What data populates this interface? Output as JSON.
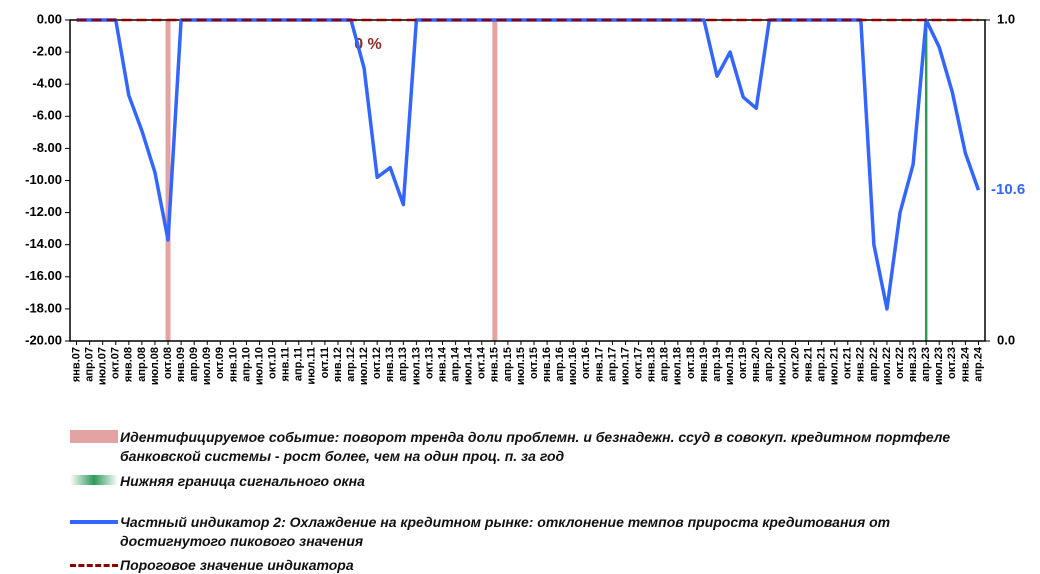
{
  "chart_data": {
    "type": "line",
    "annotation": "0 %",
    "categories": [
      "янв.07",
      "апр.07",
      "июл.07",
      "окт.07",
      "янв.08",
      "апр.08",
      "июл.08",
      "окт.08",
      "янв.09",
      "апр.09",
      "июл.09",
      "окт.09",
      "янв.10",
      "апр.10",
      "июл.10",
      "окт.10",
      "янв.11",
      "апр.11",
      "июл.11",
      "окт.11",
      "янв.12",
      "апр.12",
      "июл.12",
      "окт.12",
      "янв.13",
      "апр.13",
      "июл.13",
      "окт.13",
      "янв.14",
      "апр.14",
      "июл.14",
      "окт.14",
      "янв.15",
      "апр.15",
      "июл.15",
      "окт.15",
      "янв.16",
      "апр.16",
      "июл.16",
      "окт.16",
      "янв.17",
      "апр.17",
      "июл.17",
      "окт.17",
      "янв.18",
      "апр.18",
      "июл.18",
      "окт.18",
      "янв.19",
      "апр.19",
      "июл.19",
      "окт.19",
      "янв.20",
      "апр.20",
      "июл.20",
      "окт.20",
      "янв.21",
      "апр.21",
      "июл.21",
      "окт.21",
      "янв.22",
      "апр.22",
      "июл.22",
      "окт.22",
      "янв.23",
      "апр.23",
      "июл.23",
      "окт.23",
      "янв.24",
      "апр.24"
    ],
    "series": [
      {
        "name": "Идентифицируемое событие: поворот тренда доли проблемн. и безнадежн. ссуд в совокуп. кредитном портфеле банковской системы - рост более, чем на один проц. п. за год",
        "type": "bar",
        "axis": "y2",
        "color": "#e3a3a3",
        "values": [
          null,
          null,
          null,
          null,
          null,
          null,
          null,
          1,
          null,
          null,
          null,
          null,
          null,
          null,
          null,
          null,
          null,
          null,
          null,
          null,
          null,
          null,
          null,
          null,
          null,
          null,
          null,
          null,
          null,
          null,
          null,
          null,
          1,
          null,
          null,
          null,
          null,
          null,
          null,
          null,
          null,
          null,
          null,
          null,
          null,
          null,
          null,
          null,
          null,
          null,
          null,
          null,
          null,
          null,
          null,
          null,
          null,
          null,
          null,
          null,
          null,
          null,
          null,
          null,
          null,
          null,
          null,
          null,
          null,
          null
        ]
      },
      {
        "name": "Нижняя граница сигнального окна",
        "type": "bar",
        "axis": "y2",
        "color": "#2e9a5a",
        "values": [
          null,
          null,
          null,
          null,
          null,
          null,
          null,
          null,
          null,
          null,
          null,
          null,
          null,
          null,
          null,
          null,
          null,
          null,
          null,
          null,
          null,
          null,
          null,
          null,
          null,
          null,
          null,
          null,
          null,
          null,
          null,
          null,
          null,
          null,
          null,
          null,
          null,
          null,
          null,
          null,
          null,
          null,
          null,
          null,
          null,
          null,
          null,
          null,
          null,
          null,
          null,
          null,
          null,
          null,
          null,
          null,
          null,
          null,
          null,
          null,
          null,
          null,
          null,
          null,
          null,
          1,
          null,
          null,
          null,
          null
        ]
      },
      {
        "name": "Частный индикатор 2: Охлаждение на кредитном рынке: отклонение темпов прироста кредитования от достигнутого пикового значения",
        "type": "line",
        "color": "#3366ff",
        "values": [
          0,
          0,
          0,
          0,
          -4.7,
          -6.9,
          -9.5,
          -13.7,
          0,
          0,
          0,
          0,
          0,
          0,
          0,
          0,
          0,
          0,
          0,
          0,
          0,
          0,
          -3.0,
          -9.8,
          -9.2,
          -11.5,
          0,
          0,
          0,
          0,
          0,
          0,
          0,
          0,
          0,
          0,
          0,
          0,
          0,
          0,
          0,
          0,
          0,
          0,
          0,
          0,
          0,
          0,
          0,
          -3.5,
          -2.0,
          -4.8,
          -5.5,
          0,
          0,
          0,
          0,
          0,
          0,
          0,
          0,
          -14.0,
          -18.0,
          -12.0,
          -9.0,
          0,
          -1.7,
          -4.5,
          -8.3,
          -10.6
        ]
      },
      {
        "name": "Пороговое значение индикатора",
        "type": "dashed",
        "color": "#8b0000",
        "values": [
          0,
          0,
          0,
          0,
          0,
          0,
          0,
          0,
          0,
          0,
          0,
          0,
          0,
          0,
          0,
          0,
          0,
          0,
          0,
          0,
          0,
          0,
          0,
          0,
          0,
          0,
          0,
          0,
          0,
          0,
          0,
          0,
          0,
          0,
          0,
          0,
          0,
          0,
          0,
          0,
          0,
          0,
          0,
          0,
          0,
          0,
          0,
          0,
          0,
          0,
          0,
          0,
          0,
          0,
          0,
          0,
          0,
          0,
          0,
          0,
          0,
          0,
          0,
          0,
          0,
          0,
          0,
          0,
          0,
          0
        ]
      }
    ],
    "ylim": [
      -20,
      0
    ],
    "yticks": [
      {
        "value": -20,
        "label": "-20.00"
      },
      {
        "value": -18,
        "label": "-18.00"
      },
      {
        "value": -16,
        "label": "-16.00"
      },
      {
        "value": -14,
        "label": "-14.00"
      },
      {
        "value": -12,
        "label": "-12.00"
      },
      {
        "value": -10,
        "label": "-10.00"
      },
      {
        "value": -8,
        "label": "-8.00"
      },
      {
        "value": -6,
        "label": "-6.00"
      },
      {
        "value": -4,
        "label": "-4.00"
      },
      {
        "value": -2,
        "label": "-2.00"
      },
      {
        "value": 0,
        "label": "0.00"
      }
    ],
    "y2lim": [
      0,
      1
    ],
    "y2ticks": [
      {
        "value": 0,
        "label": "0.0"
      },
      {
        "value": 1,
        "label": "1.0"
      }
    ],
    "grid": false
  }
}
